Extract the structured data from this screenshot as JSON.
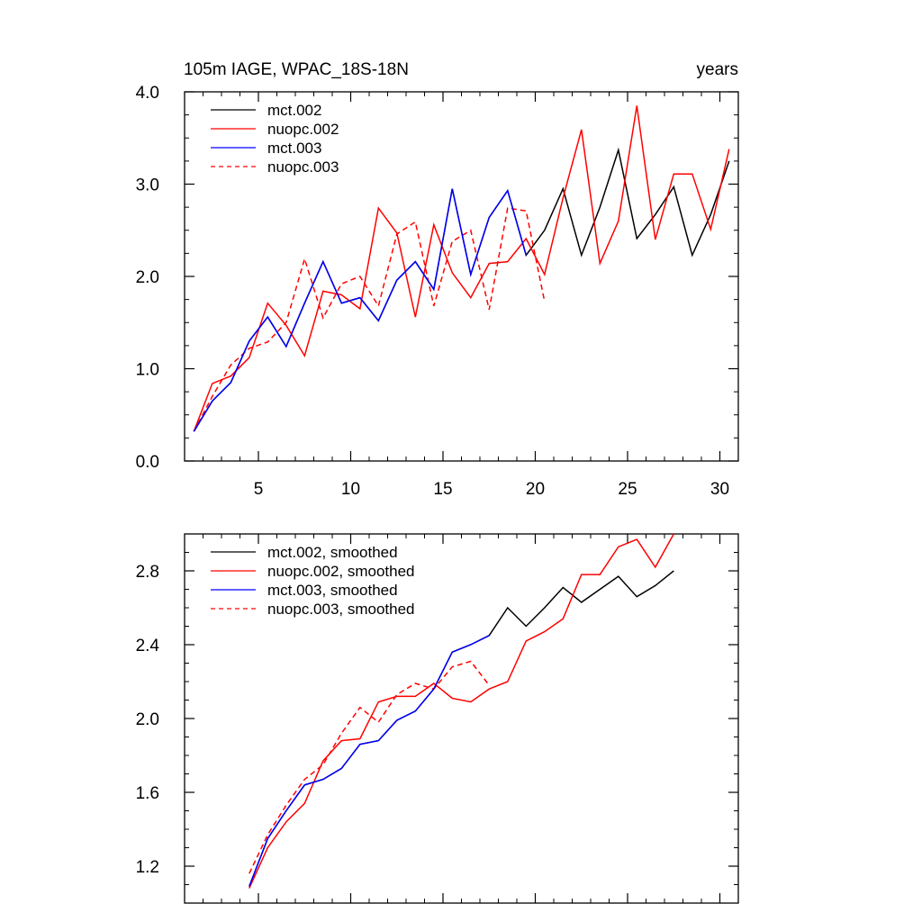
{
  "chart_data": [
    {
      "type": "line",
      "title": "105m IAGE, WPAC_18S-18N",
      "units": "years",
      "xlabel": "",
      "ylabel": "",
      "xlim": [
        1,
        31
      ],
      "ylim": [
        0.0,
        4.0
      ],
      "xticks": [
        5,
        10,
        15,
        20,
        25,
        30
      ],
      "xtick_labels": [
        "5",
        "10",
        "15",
        "20",
        "25",
        "30"
      ],
      "yticks": [
        0.0,
        1.0,
        2.0,
        3.0,
        4.0
      ],
      "ytick_labels": [
        "0.0",
        "1.0",
        "2.0",
        "3.0",
        "4.0"
      ],
      "grid": false,
      "legend_position": "top-left",
      "series": [
        {
          "name": "mct.002",
          "color": "#000000",
          "dash": "solid",
          "x": [
            1.5,
            2.5,
            3.5,
            4.5,
            5.5,
            6.5,
            7.5,
            8.5,
            9.5,
            10.5,
            11.5,
            12.5,
            13.5,
            14.5,
            15.5,
            16.5,
            17.5,
            18.5,
            19.5,
            20.5,
            21.5,
            22.5,
            23.5,
            24.5,
            25.5,
            26.5,
            27.5,
            28.5,
            29.5,
            30.5
          ],
          "values": [
            0.32,
            0.65,
            0.85,
            1.3,
            1.56,
            1.24,
            1.71,
            2.16,
            1.71,
            1.77,
            1.52,
            1.96,
            2.16,
            1.86,
            2.95,
            2.02,
            2.64,
            2.93,
            2.23,
            2.5,
            2.95,
            2.23,
            2.75,
            3.37,
            2.41,
            2.67,
            2.97,
            2.23,
            2.67,
            3.25
          ]
        },
        {
          "name": "nuopc.002",
          "color": "#ff0000",
          "dash": "solid",
          "x": [
            1.5,
            2.5,
            3.5,
            4.5,
            5.5,
            6.5,
            7.5,
            8.5,
            9.5,
            10.5,
            11.5,
            12.5,
            13.5,
            14.5,
            15.5,
            16.5,
            17.5,
            18.5,
            19.5,
            20.5,
            21.5,
            22.5,
            23.5,
            24.5,
            25.5,
            26.5,
            27.5,
            28.5,
            29.5,
            30.5
          ],
          "values": [
            0.32,
            0.84,
            0.92,
            1.12,
            1.71,
            1.47,
            1.14,
            1.84,
            1.8,
            1.65,
            2.74,
            2.47,
            1.56,
            2.56,
            2.04,
            1.77,
            2.14,
            2.16,
            2.41,
            2.02,
            2.85,
            3.59,
            2.14,
            2.6,
            3.85,
            2.4,
            3.11,
            3.11,
            2.51,
            3.38
          ]
        },
        {
          "name": "mct.003",
          "color": "#0000ff",
          "dash": "solid",
          "x": [
            1.5,
            2.5,
            3.5,
            4.5,
            5.5,
            6.5,
            7.5,
            8.5,
            9.5,
            10.5,
            11.5,
            12.5,
            13.5,
            14.5,
            15.5,
            16.5,
            17.5,
            18.5,
            19.5
          ],
          "values": [
            0.32,
            0.65,
            0.85,
            1.3,
            1.56,
            1.24,
            1.71,
            2.16,
            1.71,
            1.77,
            1.52,
            1.96,
            2.16,
            1.86,
            2.95,
            2.02,
            2.64,
            2.93,
            2.23
          ]
        },
        {
          "name": "nuopc.003",
          "color": "#ff0000",
          "dash": "dashed",
          "x": [
            1.5,
            2.5,
            3.5,
            4.5,
            5.5,
            6.5,
            7.5,
            8.5,
            9.5,
            10.5,
            11.5,
            12.5,
            13.5,
            14.5,
            15.5,
            16.5,
            17.5,
            18.5,
            19.5,
            20.5
          ],
          "values": [
            0.32,
            0.7,
            1.04,
            1.22,
            1.29,
            1.5,
            2.19,
            1.55,
            1.92,
            2.0,
            1.68,
            2.46,
            2.59,
            1.68,
            2.38,
            2.5,
            1.64,
            2.74,
            2.71,
            1.73
          ]
        }
      ]
    },
    {
      "type": "line",
      "title": "",
      "xlabel": "",
      "ylabel": "",
      "xlim": [
        1,
        31
      ],
      "ylim": [
        1.0,
        3.0
      ],
      "xticks": [
        5,
        10,
        15,
        20,
        25,
        30
      ],
      "xtick_labels": [],
      "yticks": [
        1.2,
        1.6,
        2.0,
        2.4,
        2.8
      ],
      "ytick_labels": [
        "1.2",
        "1.6",
        "2.0",
        "2.4",
        "2.8"
      ],
      "grid": false,
      "legend_position": "top-left",
      "series": [
        {
          "name": "mct.002, smoothed",
          "color": "#000000",
          "dash": "solid",
          "x": [
            4.5,
            5.5,
            6.5,
            7.5,
            8.5,
            9.5,
            10.5,
            11.5,
            12.5,
            13.5,
            14.5,
            15.5,
            16.5,
            17.5,
            18.5,
            19.5,
            20.5,
            21.5,
            22.5,
            23.5,
            24.5,
            25.5,
            26.5,
            27.5
          ],
          "values": [
            1.09,
            1.35,
            1.5,
            1.64,
            1.67,
            1.73,
            1.86,
            1.88,
            1.99,
            2.04,
            2.16,
            2.36,
            2.4,
            2.45,
            2.6,
            2.5,
            2.6,
            2.71,
            2.63,
            2.7,
            2.77,
            2.66,
            2.72,
            2.8
          ]
        },
        {
          "name": "nuopc.002, smoothed",
          "color": "#ff0000",
          "dash": "solid",
          "x": [
            4.5,
            5.5,
            6.5,
            7.5,
            8.5,
            9.5,
            10.5,
            11.5,
            12.5,
            13.5,
            14.5,
            15.5,
            16.5,
            17.5,
            18.5,
            19.5,
            20.5,
            21.5,
            22.5,
            23.5,
            24.5,
            25.5,
            26.5,
            27.5
          ],
          "values": [
            1.08,
            1.3,
            1.44,
            1.54,
            1.77,
            1.88,
            1.89,
            2.09,
            2.12,
            2.12,
            2.19,
            2.11,
            2.09,
            2.16,
            2.2,
            2.42,
            2.47,
            2.54,
            2.78,
            2.78,
            2.93,
            2.97,
            2.82,
            3.0
          ]
        },
        {
          "name": "mct.003, smoothed",
          "color": "#0000ff",
          "dash": "solid",
          "x": [
            4.5,
            5.5,
            6.5,
            7.5,
            8.5,
            9.5,
            10.5,
            11.5,
            12.5,
            13.5,
            14.5,
            15.5,
            16.5,
            17.5
          ],
          "values": [
            1.09,
            1.35,
            1.5,
            1.64,
            1.67,
            1.73,
            1.86,
            1.88,
            1.99,
            2.04,
            2.16,
            2.36,
            2.4,
            2.45
          ]
        },
        {
          "name": "nuopc.003, smoothed",
          "color": "#ff0000",
          "dash": "dashed",
          "x": [
            4.5,
            5.5,
            6.5,
            7.5,
            8.5,
            9.5,
            10.5,
            11.5,
            12.5,
            13.5,
            14.5,
            15.5,
            16.5,
            17.5
          ],
          "values": [
            1.16,
            1.37,
            1.53,
            1.67,
            1.75,
            1.92,
            2.06,
            1.98,
            2.13,
            2.19,
            2.16,
            2.28,
            2.31,
            2.18
          ]
        }
      ]
    }
  ]
}
